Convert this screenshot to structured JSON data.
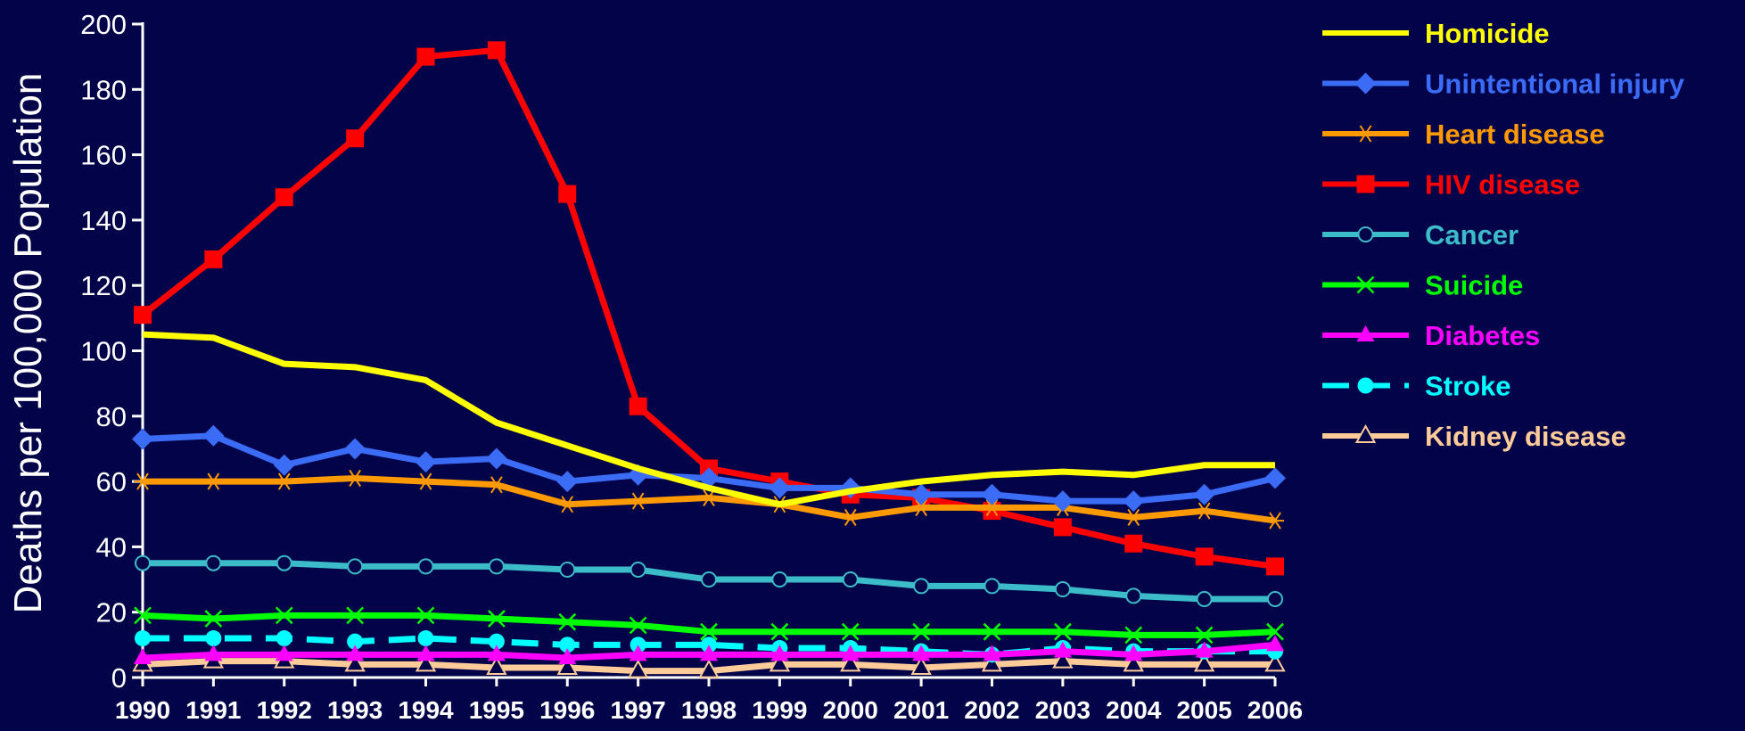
{
  "chart_data": {
    "type": "line",
    "title": "",
    "xlabel": "",
    "ylabel": "Deaths per 100,000 Population",
    "ylim": [
      0,
      200
    ],
    "yticks": [
      0,
      20,
      40,
      60,
      80,
      100,
      120,
      140,
      160,
      180,
      200
    ],
    "x": [
      1990,
      1991,
      1992,
      1993,
      1994,
      1995,
      1996,
      1997,
      1998,
      1999,
      2000,
      2001,
      2002,
      2003,
      2004,
      2005,
      2006
    ],
    "grid": false,
    "legend_position": "right",
    "background_color": "#03034a",
    "series": [
      {
        "name": "Homicide",
        "color": "#ffff00",
        "marker": "none",
        "dash": false,
        "values": [
          105,
          104,
          96,
          95,
          91,
          78,
          71,
          64,
          58,
          53,
          57,
          60,
          62,
          63,
          62,
          65,
          65
        ]
      },
      {
        "name": "Unintentional injury",
        "color": "#3a6cf5",
        "marker": "diamond",
        "dash": false,
        "values": [
          73,
          74,
          65,
          70,
          66,
          67,
          60,
          62,
          61,
          58,
          58,
          56,
          56,
          54,
          54,
          56,
          61
        ]
      },
      {
        "name": "Heart disease",
        "color": "#ff9900",
        "marker": "asterisk",
        "dash": false,
        "values": [
          60,
          60,
          60,
          61,
          60,
          59,
          53,
          54,
          55,
          53,
          49,
          52,
          52,
          52,
          49,
          51,
          48
        ]
      },
      {
        "name": "HIV disease",
        "color": "#ff0000",
        "marker": "square",
        "dash": false,
        "values": [
          111,
          128,
          147,
          165,
          190,
          192,
          148,
          83,
          64,
          60,
          56,
          55,
          51,
          46,
          41,
          37,
          34
        ]
      },
      {
        "name": "Cancer",
        "color": "#3cbcc8",
        "marker": "open-circle",
        "dash": false,
        "values": [
          35,
          35,
          35,
          34,
          34,
          34,
          33,
          33,
          30,
          30,
          30,
          28,
          28,
          27,
          25,
          24,
          24
        ]
      },
      {
        "name": "Suicide",
        "color": "#00ff00",
        "marker": "x",
        "dash": false,
        "values": [
          19,
          18,
          19,
          19,
          19,
          18,
          17,
          16,
          14,
          14,
          14,
          14,
          14,
          14,
          13,
          13,
          14
        ]
      },
      {
        "name": "Diabetes",
        "color": "#ff00ff",
        "marker": "triangle",
        "dash": false,
        "values": [
          6,
          7,
          7,
          7,
          7,
          7,
          6,
          7,
          7,
          7,
          7,
          7,
          7,
          8,
          7,
          8,
          10
        ]
      },
      {
        "name": "Stroke",
        "color": "#00ffff",
        "marker": "circle",
        "dash": true,
        "values": [
          12,
          12,
          12,
          11,
          12,
          11,
          10,
          10,
          10,
          9,
          9,
          8,
          7,
          9,
          8,
          8,
          8
        ]
      },
      {
        "name": "Kidney disease",
        "color": "#ffcc99",
        "marker": "open-triangle",
        "dash": false,
        "values": [
          4,
          5,
          5,
          4,
          4,
          3,
          3,
          2,
          2,
          4,
          4,
          3,
          4,
          5,
          4,
          4,
          4
        ]
      }
    ]
  }
}
